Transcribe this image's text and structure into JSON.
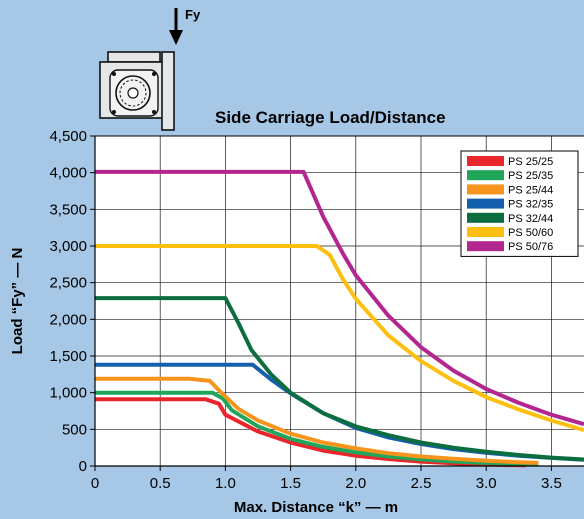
{
  "chart_data": {
    "type": "line",
    "title": "Side Carriage Load/Distance",
    "xlabel": "Max. Distance “k” — m",
    "ylabel": "Load “Fy” — N",
    "xlim": [
      0,
      3.75
    ],
    "ylim": [
      0,
      4500
    ],
    "xticks": [
      0,
      0.5,
      1,
      1.5,
      2,
      2.5,
      3,
      3.5
    ],
    "xtick_labels": [
      "0",
      "0.5",
      "1.0",
      "1.5",
      "2.0",
      "2.5",
      "3.0",
      "3.5"
    ],
    "yticks": [
      0,
      500,
      1000,
      1500,
      2000,
      2500,
      3000,
      3500,
      4000,
      4500
    ],
    "ytick_labels": [
      "0",
      "500",
      "1,000",
      "1,500",
      "2,000",
      "2,500",
      "3,000",
      "3,500",
      "4,000",
      "4,500"
    ],
    "grid": true,
    "legend_position": "top-right",
    "series": [
      {
        "name": "PS 25/25",
        "color": "#e8262b",
        "points": [
          [
            0,
            910
          ],
          [
            0.85,
            910
          ],
          [
            0.95,
            850
          ],
          [
            1.0,
            700
          ],
          [
            1.25,
            470
          ],
          [
            1.5,
            320
          ],
          [
            1.75,
            210
          ],
          [
            2.0,
            140
          ],
          [
            2.25,
            95
          ],
          [
            2.5,
            60
          ],
          [
            2.75,
            38
          ],
          [
            3.0,
            20
          ],
          [
            3.3,
            10
          ]
        ]
      },
      {
        "name": "PS 25/35",
        "color": "#21a559",
        "points": [
          [
            0,
            1000
          ],
          [
            0.9,
            1000
          ],
          [
            0.98,
            920
          ],
          [
            1.05,
            760
          ],
          [
            1.25,
            540
          ],
          [
            1.5,
            370
          ],
          [
            1.75,
            260
          ],
          [
            2.0,
            185
          ],
          [
            2.25,
            130
          ],
          [
            2.5,
            90
          ],
          [
            2.75,
            62
          ],
          [
            3.0,
            42
          ],
          [
            3.3,
            28
          ],
          [
            3.4,
            22
          ]
        ]
      },
      {
        "name": "PS 25/44",
        "color": "#f7941e",
        "points": [
          [
            0,
            1190
          ],
          [
            0.72,
            1190
          ],
          [
            0.88,
            1160
          ],
          [
            0.98,
            980
          ],
          [
            1.1,
            780
          ],
          [
            1.25,
            620
          ],
          [
            1.5,
            440
          ],
          [
            1.75,
            320
          ],
          [
            2.0,
            240
          ],
          [
            2.25,
            175
          ],
          [
            2.5,
            130
          ],
          [
            2.75,
            98
          ],
          [
            3.0,
            72
          ],
          [
            3.25,
            52
          ],
          [
            3.4,
            42
          ]
        ]
      },
      {
        "name": "PS 32/35",
        "color": "#1560ad",
        "points": [
          [
            0,
            1380
          ],
          [
            1.21,
            1380
          ],
          [
            1.35,
            1180
          ],
          [
            1.5,
            990
          ],
          [
            1.75,
            720
          ],
          [
            2.0,
            520
          ],
          [
            2.25,
            390
          ],
          [
            2.5,
            300
          ],
          [
            2.75,
            230
          ],
          [
            3.0,
            180
          ],
          [
            3.25,
            140
          ],
          [
            3.5,
            110
          ],
          [
            3.75,
            85
          ]
        ]
      },
      {
        "name": "PS 32/44",
        "color": "#0c6e3f",
        "points": [
          [
            0,
            2290
          ],
          [
            1.0,
            2290
          ],
          [
            1.1,
            1950
          ],
          [
            1.2,
            1580
          ],
          [
            1.35,
            1250
          ],
          [
            1.5,
            1000
          ],
          [
            1.75,
            720
          ],
          [
            2.0,
            540
          ],
          [
            2.25,
            420
          ],
          [
            2.5,
            320
          ],
          [
            2.75,
            250
          ],
          [
            3.0,
            195
          ],
          [
            3.25,
            150
          ],
          [
            3.5,
            115
          ],
          [
            3.75,
            88
          ]
        ]
      },
      {
        "name": "PS 50/60",
        "color": "#fdc010",
        "points": [
          [
            0,
            3000
          ],
          [
            1.7,
            3000
          ],
          [
            1.8,
            2880
          ],
          [
            1.9,
            2550
          ],
          [
            2.0,
            2280
          ],
          [
            2.25,
            1780
          ],
          [
            2.5,
            1430
          ],
          [
            2.75,
            1160
          ],
          [
            3.0,
            940
          ],
          [
            3.25,
            770
          ],
          [
            3.5,
            620
          ],
          [
            3.75,
            490
          ]
        ]
      },
      {
        "name": "PS 50/76",
        "color": "#b3268f",
        "points": [
          [
            0,
            4010
          ],
          [
            1.6,
            4010
          ],
          [
            1.75,
            3400
          ],
          [
            1.9,
            2900
          ],
          [
            2.0,
            2600
          ],
          [
            2.25,
            2050
          ],
          [
            2.5,
            1620
          ],
          [
            2.75,
            1300
          ],
          [
            3.0,
            1050
          ],
          [
            3.25,
            860
          ],
          [
            3.5,
            700
          ],
          [
            3.75,
            570
          ]
        ]
      }
    ]
  },
  "diagram": {
    "force_label": "Fy"
  }
}
